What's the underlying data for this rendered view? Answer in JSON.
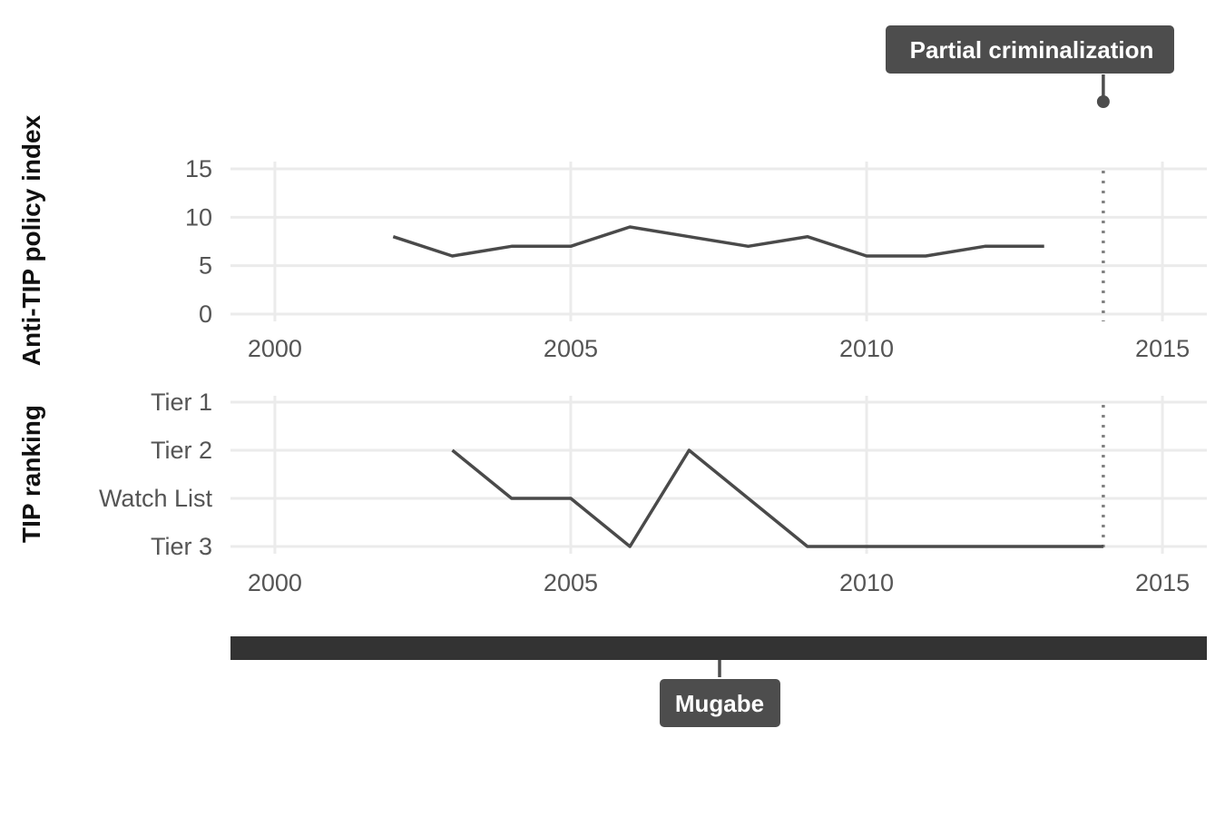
{
  "chart_data": [
    {
      "type": "line",
      "ylabel": "Anti-TIP policy index",
      "x": [
        2002,
        2003,
        2004,
        2005,
        2006,
        2007,
        2008,
        2009,
        2010,
        2011,
        2012,
        2013
      ],
      "values": [
        8,
        6,
        7,
        7,
        9,
        8,
        7,
        8,
        6,
        6,
        7,
        7
      ],
      "xlim": [
        1999.25,
        2015.75
      ],
      "ylim": [
        0,
        15
      ],
      "x_ticks": [
        2000,
        2005,
        2010,
        2015
      ],
      "y_ticks": [
        0,
        5,
        10,
        15
      ],
      "grid": true,
      "annotation": {
        "label": "Partial criminalization",
        "x": 2014
      }
    },
    {
      "type": "line",
      "ylabel": "TIP ranking",
      "x": [
        2003,
        2004,
        2005,
        2006,
        2007,
        2008,
        2009,
        2010,
        2011,
        2012,
        2013,
        2014
      ],
      "values": [
        "Tier 2",
        "Watch List",
        "Watch List",
        "Tier 3",
        "Tier 2",
        "Watch List",
        "Tier 3",
        "Tier 3",
        "Tier 3",
        "Tier 3",
        "Tier 3",
        "Tier 3"
      ],
      "categories": [
        "Tier 1",
        "Tier 2",
        "Watch List",
        "Tier 3"
      ],
      "xlim": [
        1999.25,
        2015.75
      ],
      "x_ticks": [
        2000,
        2005,
        2010,
        2015
      ],
      "grid": true,
      "marker_x": 2014
    },
    {
      "type": "timeline",
      "label": "Mugabe",
      "start": 1999.25,
      "end": 2015.75
    }
  ],
  "colors": {
    "line": "#4a4a4a",
    "grid": "#ebebeb",
    "label_bg": "#4d4d4d",
    "timeline_bar": "#333333",
    "marker": "#808080"
  }
}
